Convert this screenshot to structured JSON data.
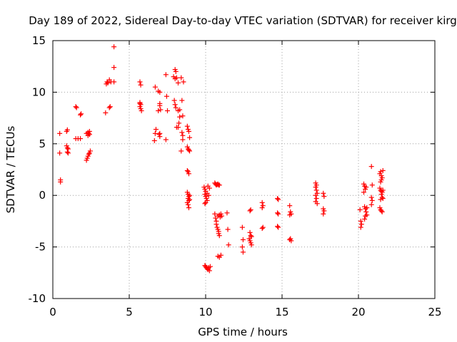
{
  "chart_data": {
    "type": "scatter",
    "title": "Day 189 of 2022, Sidereal Day-to-day VTEC variation (SDTVAR) for receiver kirg",
    "xlabel": "GPS time / hours",
    "ylabel": "SDTVAR / TECUs",
    "xlim": [
      0,
      25
    ],
    "ylim": [
      -10,
      15
    ],
    "xticks": [
      0,
      5,
      10,
      15,
      20,
      25
    ],
    "yticks": [
      -10,
      -5,
      0,
      5,
      10,
      15
    ],
    "grid": true,
    "marker": "+",
    "color": "#ff0000",
    "series": [
      {
        "name": "SDTVAR",
        "points": [
          [
            0.45,
            6.0
          ],
          [
            0.45,
            4.1
          ],
          [
            0.5,
            1.5
          ],
          [
            0.5,
            1.3
          ],
          [
            0.9,
            6.2
          ],
          [
            0.95,
            6.35
          ],
          [
            0.9,
            4.8
          ],
          [
            0.95,
            4.6
          ],
          [
            1.0,
            4.5
          ],
          [
            0.95,
            4.2
          ],
          [
            1.0,
            4.1
          ],
          [
            1.5,
            8.6
          ],
          [
            1.55,
            8.5
          ],
          [
            1.5,
            5.5
          ],
          [
            1.65,
            5.5
          ],
          [
            1.8,
            5.5
          ],
          [
            1.8,
            7.8
          ],
          [
            1.85,
            7.9
          ],
          [
            2.2,
            6.0
          ],
          [
            2.3,
            6.1
          ],
          [
            2.35,
            6.0
          ],
          [
            2.4,
            6.2
          ],
          [
            2.3,
            5.8
          ],
          [
            2.4,
            5.9
          ],
          [
            2.2,
            3.4
          ],
          [
            2.25,
            3.6
          ],
          [
            2.3,
            3.8
          ],
          [
            2.35,
            4.0
          ],
          [
            2.4,
            4.1
          ],
          [
            2.45,
            4.3
          ],
          [
            3.45,
            8.0
          ],
          [
            3.5,
            10.8
          ],
          [
            3.55,
            11.0
          ],
          [
            3.6,
            10.9
          ],
          [
            3.7,
            11.2
          ],
          [
            3.8,
            11.0
          ],
          [
            3.7,
            8.5
          ],
          [
            3.75,
            8.6
          ],
          [
            4.0,
            11.0
          ],
          [
            4.0,
            12.4
          ],
          [
            4.0,
            14.4
          ],
          [
            5.7,
            11.0
          ],
          [
            5.75,
            10.7
          ],
          [
            5.7,
            9.0
          ],
          [
            5.75,
            8.8
          ],
          [
            5.7,
            8.6
          ],
          [
            5.75,
            8.4
          ],
          [
            5.8,
            8.2
          ],
          [
            5.7,
            8.9
          ],
          [
            6.7,
            10.5
          ],
          [
            6.75,
            6.4
          ],
          [
            6.7,
            6.0
          ],
          [
            6.65,
            5.3
          ],
          [
            6.9,
            10.1
          ],
          [
            7.0,
            10.0
          ],
          [
            7.0,
            8.9
          ],
          [
            7.0,
            8.7
          ],
          [
            7.05,
            8.3
          ],
          [
            6.9,
            8.2
          ],
          [
            6.95,
            5.9
          ],
          [
            7.0,
            6.0
          ],
          [
            7.0,
            5.7
          ],
          [
            7.4,
            11.7
          ],
          [
            7.45,
            9.6
          ],
          [
            7.5,
            8.2
          ],
          [
            7.4,
            5.4
          ],
          [
            7.9,
            11.5
          ],
          [
            8.0,
            12.2
          ],
          [
            8.05,
            12.0
          ],
          [
            8.0,
            11.3
          ],
          [
            8.1,
            11.4
          ],
          [
            8.2,
            10.9
          ],
          [
            7.95,
            9.2
          ],
          [
            8.0,
            8.8
          ],
          [
            8.05,
            8.5
          ],
          [
            8.1,
            6.6
          ],
          [
            8.2,
            6.6
          ],
          [
            8.25,
            7.0
          ],
          [
            8.3,
            7.6
          ],
          [
            8.2,
            8.2
          ],
          [
            8.3,
            8.3
          ],
          [
            8.4,
            11.4
          ],
          [
            8.45,
            9.2
          ],
          [
            8.5,
            7.7
          ],
          [
            8.45,
            6.1
          ],
          [
            8.5,
            5.8
          ],
          [
            8.4,
            4.3
          ],
          [
            8.5,
            5.4
          ],
          [
            8.55,
            11.0
          ],
          [
            8.8,
            6.7
          ],
          [
            8.85,
            6.4
          ],
          [
            8.9,
            6.2
          ],
          [
            8.95,
            5.6
          ],
          [
            8.8,
            4.7
          ],
          [
            8.85,
            4.5
          ],
          [
            8.9,
            4.4
          ],
          [
            8.95,
            4.3
          ],
          [
            8.8,
            2.4
          ],
          [
            8.85,
            2.3
          ],
          [
            8.9,
            2.1
          ],
          [
            8.8,
            0.3
          ],
          [
            8.85,
            0.1
          ],
          [
            8.9,
            -0.1
          ],
          [
            8.85,
            -0.3
          ],
          [
            8.9,
            -0.5
          ],
          [
            8.8,
            -0.7
          ],
          [
            8.85,
            -0.9
          ],
          [
            8.9,
            -1.2
          ],
          [
            8.95,
            0.0
          ],
          [
            8.95,
            -0.4
          ],
          [
            9.9,
            0.8
          ],
          [
            9.95,
            0.6
          ],
          [
            10.0,
            0.4
          ],
          [
            9.95,
            0.1
          ],
          [
            10.0,
            -0.1
          ],
          [
            10.05,
            -0.3
          ],
          [
            10.1,
            -0.5
          ],
          [
            10.0,
            -0.7
          ],
          [
            9.95,
            -0.8
          ],
          [
            10.1,
            0.2
          ],
          [
            10.2,
            0.0
          ],
          [
            10.15,
            0.9
          ],
          [
            10.25,
            0.7
          ],
          [
            9.95,
            -6.8
          ],
          [
            10.0,
            -6.9
          ],
          [
            10.05,
            -7.0
          ],
          [
            10.1,
            -7.1
          ],
          [
            10.15,
            -7.2
          ],
          [
            10.2,
            -7.0
          ],
          [
            10.25,
            -7.3
          ],
          [
            10.3,
            -6.9
          ],
          [
            10.6,
            1.2
          ],
          [
            10.65,
            1.1
          ],
          [
            10.7,
            1.0
          ],
          [
            10.75,
            1.05
          ],
          [
            10.8,
            1.1
          ],
          [
            10.85,
            1.0
          ],
          [
            10.9,
            1.0
          ],
          [
            10.6,
            -1.8
          ],
          [
            10.65,
            -2.2
          ],
          [
            10.7,
            -2.5
          ],
          [
            10.7,
            -2.8
          ],
          [
            10.75,
            -3.1
          ],
          [
            10.8,
            -3.3
          ],
          [
            10.85,
            -3.5
          ],
          [
            10.85,
            -3.7
          ],
          [
            10.9,
            -3.9
          ],
          [
            10.8,
            -2.0
          ],
          [
            10.9,
            -1.9
          ],
          [
            11.0,
            -1.8
          ],
          [
            11.05,
            -2.0
          ],
          [
            10.95,
            -2.1
          ],
          [
            10.8,
            -5.9
          ],
          [
            10.9,
            -6.0
          ],
          [
            11.0,
            -5.8
          ],
          [
            11.4,
            -1.7
          ],
          [
            11.45,
            -3.3
          ],
          [
            11.5,
            -4.8
          ],
          [
            12.4,
            -3.1
          ],
          [
            12.45,
            -4.3
          ],
          [
            12.4,
            -5.0
          ],
          [
            12.45,
            -5.5
          ],
          [
            12.9,
            -1.5
          ],
          [
            12.95,
            -1.4
          ],
          [
            12.9,
            -3.6
          ],
          [
            12.95,
            -3.9
          ],
          [
            13.0,
            -4.0
          ],
          [
            12.9,
            -4.4
          ],
          [
            12.95,
            -4.6
          ],
          [
            13.0,
            -4.8
          ],
          [
            12.85,
            -4.2
          ],
          [
            13.7,
            -0.7
          ],
          [
            13.75,
            -1.0
          ],
          [
            13.7,
            -1.2
          ],
          [
            13.75,
            -3.1
          ],
          [
            13.7,
            -3.2
          ],
          [
            14.7,
            -0.3
          ],
          [
            14.75,
            -0.4
          ],
          [
            14.7,
            -1.7
          ],
          [
            14.75,
            -1.8
          ],
          [
            14.7,
            -3.0
          ],
          [
            14.75,
            -3.1
          ],
          [
            15.5,
            -1.0
          ],
          [
            15.55,
            -1.6
          ],
          [
            15.6,
            -1.8
          ],
          [
            15.5,
            -1.9
          ],
          [
            15.55,
            -4.2
          ],
          [
            15.6,
            -4.4
          ],
          [
            15.5,
            -4.3
          ],
          [
            17.2,
            1.2
          ],
          [
            17.25,
            1.0
          ],
          [
            17.2,
            0.8
          ],
          [
            17.25,
            0.5
          ],
          [
            17.3,
            0.2
          ],
          [
            17.2,
            0.0
          ],
          [
            17.25,
            -0.3
          ],
          [
            17.3,
            -0.8
          ],
          [
            17.2,
            -0.6
          ],
          [
            17.7,
            0.2
          ],
          [
            17.75,
            -0.1
          ],
          [
            17.7,
            -1.3
          ],
          [
            17.75,
            -1.5
          ],
          [
            17.7,
            -1.8
          ],
          [
            20.1,
            -1.4
          ],
          [
            20.15,
            -2.5
          ],
          [
            20.2,
            -2.8
          ],
          [
            20.15,
            -3.1
          ],
          [
            20.35,
            1.1
          ],
          [
            20.4,
            0.9
          ],
          [
            20.45,
            0.6
          ],
          [
            20.35,
            0.3
          ],
          [
            20.4,
            -1.1
          ],
          [
            20.45,
            -1.3
          ],
          [
            20.5,
            -1.6
          ],
          [
            20.55,
            -1.9
          ],
          [
            20.45,
            -2.0
          ],
          [
            20.4,
            -2.3
          ],
          [
            20.55,
            -1.2
          ],
          [
            20.5,
            0.8
          ],
          [
            20.85,
            2.8
          ],
          [
            20.9,
            1.0
          ],
          [
            20.85,
            -0.2
          ],
          [
            20.9,
            -0.5
          ],
          [
            20.85,
            -0.9
          ],
          [
            21.4,
            2.1
          ],
          [
            21.45,
            2.3
          ],
          [
            21.5,
            1.9
          ],
          [
            21.55,
            1.7
          ],
          [
            21.6,
            2.4
          ],
          [
            21.5,
            1.5
          ],
          [
            21.45,
            1.3
          ],
          [
            21.4,
            0.7
          ],
          [
            21.45,
            0.5
          ],
          [
            21.5,
            0.4
          ],
          [
            21.55,
            0.3
          ],
          [
            21.6,
            0.5
          ],
          [
            21.5,
            0.1
          ],
          [
            21.55,
            -0.2
          ],
          [
            21.6,
            -0.3
          ],
          [
            21.45,
            -0.4
          ],
          [
            21.4,
            -1.2
          ],
          [
            21.45,
            -1.4
          ],
          [
            21.5,
            -1.5
          ],
          [
            21.55,
            -1.6
          ]
        ]
      }
    ]
  }
}
